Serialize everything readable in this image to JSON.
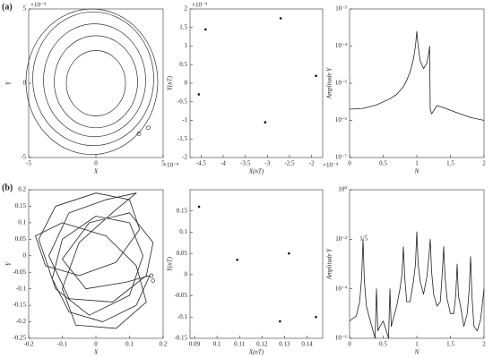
{
  "chart_data": [
    {
      "type": "orbit",
      "panel_label": "(a)",
      "xlabel": "X",
      "ylabel": "Y",
      "x_multiplier": "×10⁻⁴",
      "y_multiplier": "×10⁻⁴",
      "xlim": [
        -5,
        5
      ],
      "ylim": [
        -5,
        5
      ],
      "xticks": [
        -5,
        0,
        5
      ],
      "yticks": [
        -5,
        0,
        5
      ],
      "circles": [
        {
          "cx": 0,
          "cy": 0,
          "r": 2.2
        },
        {
          "cx": 0,
          "cy": 0.1,
          "r": 3.1
        },
        {
          "cx": -0.1,
          "cy": 0.2,
          "r": 3.8
        },
        {
          "cx": -0.2,
          "cy": 0.3,
          "r": 4.5
        },
        {
          "cx": -0.3,
          "cy": 0.1,
          "r": 4.9
        }
      ],
      "points": {
        "x": [
          3.2,
          3.9
        ],
        "y": [
          -3.4,
          -3.0
        ]
      }
    },
    {
      "type": "scatter",
      "xlabel": "X(nT)",
      "ylabel": "Y(nT)",
      "x_multiplier": "×10⁻⁴",
      "y_multiplier": "×10⁻⁴",
      "xlim": [
        -4.75,
        -1.75
      ],
      "ylim": [
        -2,
        2
      ],
      "xticks": [
        -4.5,
        -4,
        -3.5,
        -3,
        -2.5,
        -2
      ],
      "yticks": [
        -2,
        -1.5,
        -1,
        -0.5,
        0,
        0.5,
        1,
        1.5,
        2
      ],
      "x": [
        -4.4,
        -2.7,
        -1.9,
        -3.05,
        -4.55
      ],
      "y": [
        1.45,
        1.75,
        0.2,
        -1.05,
        -0.3
      ]
    },
    {
      "type": "line",
      "xlabel": "N",
      "ylabel": "Amplitude Y",
      "log_y": true,
      "xlim": [
        0,
        2
      ],
      "ylim": [
        1e-07,
        0.001
      ],
      "xticks": [
        0,
        0.5,
        1,
        1.5,
        2
      ],
      "yticks": [
        {
          "value": 1e-07,
          "label": "10⁻⁷"
        },
        {
          "value": 1e-06,
          "label": "10⁻⁶"
        },
        {
          "value": 1e-05,
          "label": "10⁻⁵"
        },
        {
          "value": 0.0001,
          "label": "10⁻⁴"
        },
        {
          "value": 0.001,
          "label": "10⁻³"
        }
      ],
      "x": [
        0,
        0.2,
        0.4,
        0.6,
        0.7,
        0.8,
        0.85,
        0.9,
        0.95,
        0.98,
        1.0,
        1.02,
        1.05,
        1.1,
        1.15,
        1.18,
        1.19,
        1.2,
        1.22,
        1.3,
        1.4,
        1.6,
        1.8,
        2.0
      ],
      "values": [
        2e-06,
        2.1e-06,
        2.6e-06,
        3.8e-06,
        5e-06,
        8e-06,
        1.2e-05,
        2e-05,
        4.5e-05,
        0.0001,
        0.00025,
        0.0001,
        4e-05,
        2.5e-05,
        3.5e-05,
        7e-05,
        0.0001,
        2e-06,
        1.5e-06,
        2.5e-06,
        2.2e-06,
        1.6e-06,
        1.2e-06,
        1e-06
      ]
    },
    {
      "type": "trajectory",
      "panel_label": "(b)",
      "xlabel": "X",
      "ylabel": "Y",
      "xlim": [
        -0.2,
        0.2
      ],
      "ylim": [
        -0.25,
        0.2
      ],
      "xticks": [
        -0.2,
        -0.1,
        0,
        0.1,
        0.2
      ],
      "yticks": [
        -0.25,
        -0.2,
        -0.15,
        -0.1,
        -0.05,
        0,
        0.05,
        0.1,
        0.15,
        0.2
      ],
      "x": [
        0.16,
        0.12,
        0.02,
        -0.08,
        -0.13,
        -0.1,
        0.0,
        0.1,
        0.14,
        0.1,
        -0.02,
        -0.12,
        -0.17,
        -0.12,
        0.0,
        0.1,
        0.13,
        0.06,
        -0.05,
        -0.15,
        -0.18,
        -0.1,
        0.03,
        0.12,
        0.15,
        0.06,
        -0.06,
        -0.1,
        -0.05,
        0.06,
        0.12,
        0.03,
        -0.08,
        -0.14,
        -0.08,
        0.05,
        0.15,
        0.17,
        0.1,
        -0.02,
        -0.1,
        -0.03,
        0.09,
        0.16
      ],
      "y": [
        -0.06,
        -0.15,
        -0.2,
        -0.17,
        -0.07,
        0.05,
        0.12,
        0.1,
        0.0,
        -0.12,
        -0.18,
        -0.1,
        0.05,
        0.15,
        0.19,
        0.17,
        0.08,
        -0.02,
        -0.06,
        -0.03,
        0.06,
        0.1,
        0.06,
        -0.03,
        -0.14,
        -0.22,
        -0.21,
        -0.1,
        0.04,
        0.14,
        0.19,
        0.17,
        0.13,
        0.0,
        -0.13,
        -0.14,
        -0.06,
        0.04,
        0.13,
        0.1,
        -0.01,
        -0.1,
        -0.08,
        -0.06
      ],
      "points": {
        "x": [
          0.165,
          0.17
        ],
        "y": [
          -0.06,
          -0.075
        ]
      }
    },
    {
      "type": "scatter",
      "xlabel": "X(nT)",
      "ylabel": "Y(nT)",
      "xlim": [
        0.088,
        0.147
      ],
      "ylim": [
        -0.15,
        0.2
      ],
      "xticks": [
        0.09,
        0.1,
        0.11,
        0.12,
        0.13,
        0.14
      ],
      "yticks": [
        -0.15,
        -0.1,
        -0.05,
        0,
        0.05,
        0.1,
        0.15
      ],
      "x": [
        0.092,
        0.109,
        0.132,
        0.128,
        0.144
      ],
      "y": [
        0.16,
        0.035,
        0.05,
        -0.11,
        -0.1
      ]
    },
    {
      "type": "line",
      "xlabel": "N",
      "ylabel": "Amplitude Y",
      "log_y": true,
      "annotation": "1/5",
      "xlim": [
        0,
        2
      ],
      "ylim": [
        1e-06,
        1
      ],
      "xticks": [
        0,
        0.5,
        1,
        1.5,
        2
      ],
      "yticks": [
        {
          "value": 1e-06,
          "label": "10⁻⁶"
        },
        {
          "value": 0.0001,
          "label": "10⁻⁴"
        },
        {
          "value": 0.01,
          "label": "10⁻²"
        },
        {
          "value": 1,
          "label": "10⁰"
        }
      ],
      "x": [
        0,
        0.1,
        0.15,
        0.18,
        0.2,
        0.22,
        0.25,
        0.3,
        0.38,
        0.4,
        0.42,
        0.45,
        0.5,
        0.58,
        0.6,
        0.62,
        0.65,
        0.7,
        0.75,
        0.78,
        0.8,
        0.82,
        0.85,
        0.9,
        0.95,
        0.98,
        1.0,
        1.02,
        1.05,
        1.1,
        1.15,
        1.18,
        1.2,
        1.22,
        1.25,
        1.3,
        1.35,
        1.38,
        1.4,
        1.42,
        1.45,
        1.5,
        1.55,
        1.58,
        1.6,
        1.62,
        1.65,
        1.7,
        1.75,
        1.78,
        1.8,
        1.82,
        1.85,
        1.9,
        1.95,
        2.0
      ],
      "values": [
        5e-06,
        8e-06,
        3e-05,
        0.0003,
        0.01,
        0.0002,
        2e-05,
        6e-06,
        1e-06,
        0.0001,
        2e-06,
        3e-06,
        5e-06,
        1e-06,
        0.0001,
        3e-06,
        6e-06,
        2e-05,
        0.0001,
        0.0004,
        0.005,
        0.0003,
        3e-05,
        3e-05,
        0.0002,
        0.001,
        0.02,
        0.001,
        0.0002,
        6e-05,
        0.0003,
        0.002,
        0.01,
        0.0005,
        6e-05,
        2e-05,
        3e-05,
        0.0005,
        0.005,
        0.0003,
        4e-05,
        1e-05,
        1e-05,
        6e-05,
        0.001,
        5e-05,
        2e-05,
        3e-06,
        1e-05,
        0.0001,
        0.002,
        5e-05,
        3e-06,
        2e-06,
        6e-06,
        0.0001
      ]
    }
  ]
}
